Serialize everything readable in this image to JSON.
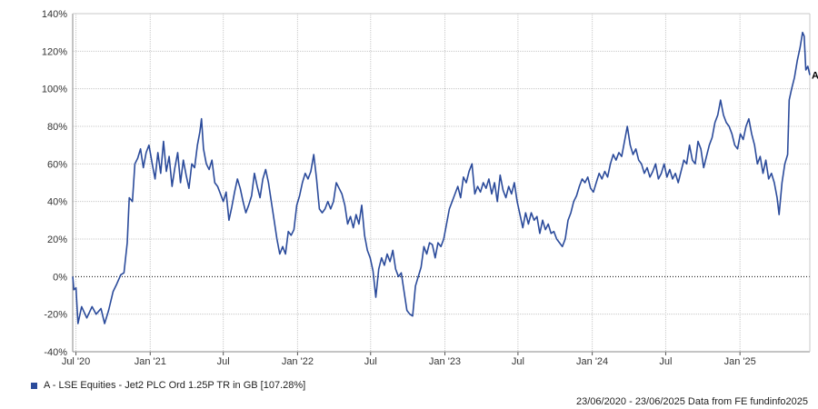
{
  "chart_data": {
    "type": "line",
    "title": "",
    "xlabel": "",
    "ylabel": "",
    "ylim": [
      -40,
      140
    ],
    "y_ticks": [
      -40,
      -20,
      0,
      20,
      40,
      60,
      80,
      100,
      120,
      140
    ],
    "y_tick_labels": [
      "-40%",
      "-20%",
      "0%",
      "20%",
      "40%",
      "60%",
      "80%",
      "100%",
      "120%",
      "140%"
    ],
    "x_range": [
      "2020-06-23",
      "2025-06-23"
    ],
    "x_ticks": [
      {
        "date": "2020-07-01",
        "label": "Jul '20"
      },
      {
        "date": "2021-01-01",
        "label": "Jan '21"
      },
      {
        "date": "2021-07-01",
        "label": "Jul"
      },
      {
        "date": "2022-01-01",
        "label": "Jan '22"
      },
      {
        "date": "2022-07-01",
        "label": "Jul"
      },
      {
        "date": "2023-01-01",
        "label": "Jan '23"
      },
      {
        "date": "2023-07-01",
        "label": "Jul"
      },
      {
        "date": "2024-01-01",
        "label": "Jan '24"
      },
      {
        "date": "2024-07-01",
        "label": "Jul"
      },
      {
        "date": "2025-01-01",
        "label": "Jan '25"
      }
    ],
    "grid": true,
    "zero_line": "dotted",
    "series": [
      {
        "name": "A - LSE Equities - Jet2 PLC Ord 1.25P TR in GB [107.28%]",
        "end_label": "A",
        "color": "#2b4b9b",
        "points": [
          [
            "2020-06-23",
            0
          ],
          [
            "2020-06-26",
            -7
          ],
          [
            "2020-07-01",
            -6
          ],
          [
            "2020-07-06",
            -25
          ],
          [
            "2020-07-15",
            -16
          ],
          [
            "2020-07-28",
            -22
          ],
          [
            "2020-08-10",
            -16
          ],
          [
            "2020-08-20",
            -20
          ],
          [
            "2020-09-01",
            -17
          ],
          [
            "2020-09-10",
            -25
          ],
          [
            "2020-09-20",
            -18
          ],
          [
            "2020-10-01",
            -8
          ],
          [
            "2020-10-10",
            -4
          ],
          [
            "2020-10-20",
            1
          ],
          [
            "2020-10-28",
            2
          ],
          [
            "2020-11-05",
            18
          ],
          [
            "2020-11-10",
            42
          ],
          [
            "2020-11-18",
            40
          ],
          [
            "2020-11-24",
            60
          ],
          [
            "2020-12-01",
            63
          ],
          [
            "2020-12-08",
            68
          ],
          [
            "2020-12-15",
            58
          ],
          [
            "2020-12-22",
            66
          ],
          [
            "2020-12-29",
            70
          ],
          [
            "2021-01-06",
            60
          ],
          [
            "2021-01-13",
            52
          ],
          [
            "2021-01-20",
            66
          ],
          [
            "2021-01-27",
            55
          ],
          [
            "2021-02-03",
            72
          ],
          [
            "2021-02-10",
            56
          ],
          [
            "2021-02-17",
            64
          ],
          [
            "2021-02-24",
            48
          ],
          [
            "2021-03-03",
            58
          ],
          [
            "2021-03-10",
            66
          ],
          [
            "2021-03-17",
            50
          ],
          [
            "2021-03-24",
            62
          ],
          [
            "2021-03-31",
            54
          ],
          [
            "2021-04-07",
            47
          ],
          [
            "2021-04-14",
            60
          ],
          [
            "2021-04-21",
            58
          ],
          [
            "2021-04-28",
            70
          ],
          [
            "2021-05-04",
            77
          ],
          [
            "2021-05-08",
            84
          ],
          [
            "2021-05-13",
            68
          ],
          [
            "2021-05-20",
            60
          ],
          [
            "2021-05-27",
            57
          ],
          [
            "2021-06-03",
            62
          ],
          [
            "2021-06-10",
            50
          ],
          [
            "2021-06-17",
            48
          ],
          [
            "2021-06-24",
            44
          ],
          [
            "2021-07-01",
            40
          ],
          [
            "2021-07-08",
            45
          ],
          [
            "2021-07-15",
            30
          ],
          [
            "2021-07-22",
            37
          ],
          [
            "2021-07-29",
            45
          ],
          [
            "2021-08-05",
            52
          ],
          [
            "2021-08-12",
            47
          ],
          [
            "2021-08-19",
            40
          ],
          [
            "2021-08-26",
            34
          ],
          [
            "2021-09-02",
            38
          ],
          [
            "2021-09-09",
            43
          ],
          [
            "2021-09-16",
            55
          ],
          [
            "2021-09-23",
            48
          ],
          [
            "2021-09-30",
            42
          ],
          [
            "2021-10-07",
            52
          ],
          [
            "2021-10-14",
            57
          ],
          [
            "2021-10-21",
            50
          ],
          [
            "2021-10-28",
            40
          ],
          [
            "2021-11-04",
            30
          ],
          [
            "2021-11-11",
            20
          ],
          [
            "2021-11-18",
            12
          ],
          [
            "2021-11-25",
            16
          ],
          [
            "2021-12-02",
            12
          ],
          [
            "2021-12-09",
            24
          ],
          [
            "2021-12-16",
            22
          ],
          [
            "2021-12-23",
            25
          ],
          [
            "2021-12-30",
            38
          ],
          [
            "2022-01-06",
            43
          ],
          [
            "2022-01-13",
            50
          ],
          [
            "2022-01-20",
            55
          ],
          [
            "2022-01-27",
            52
          ],
          [
            "2022-02-03",
            56
          ],
          [
            "2022-02-10",
            65
          ],
          [
            "2022-02-17",
            52
          ],
          [
            "2022-02-24",
            36
          ],
          [
            "2022-03-03",
            34
          ],
          [
            "2022-03-10",
            36
          ],
          [
            "2022-03-17",
            40
          ],
          [
            "2022-03-24",
            36
          ],
          [
            "2022-03-31",
            40
          ],
          [
            "2022-04-07",
            50
          ],
          [
            "2022-04-14",
            47
          ],
          [
            "2022-04-21",
            44
          ],
          [
            "2022-04-28",
            38
          ],
          [
            "2022-05-05",
            28
          ],
          [
            "2022-05-12",
            32
          ],
          [
            "2022-05-19",
            26
          ],
          [
            "2022-05-26",
            33
          ],
          [
            "2022-06-02",
            28
          ],
          [
            "2022-06-09",
            38
          ],
          [
            "2022-06-16",
            22
          ],
          [
            "2022-06-23",
            14
          ],
          [
            "2022-06-30",
            10
          ],
          [
            "2022-07-07",
            3
          ],
          [
            "2022-07-14",
            -11
          ],
          [
            "2022-07-21",
            4
          ],
          [
            "2022-07-28",
            10
          ],
          [
            "2022-08-04",
            6
          ],
          [
            "2022-08-11",
            12
          ],
          [
            "2022-08-18",
            8
          ],
          [
            "2022-08-25",
            14
          ],
          [
            "2022-09-01",
            4
          ],
          [
            "2022-09-08",
            0
          ],
          [
            "2022-09-15",
            2
          ],
          [
            "2022-09-22",
            -8
          ],
          [
            "2022-09-29",
            -18
          ],
          [
            "2022-10-06",
            -20
          ],
          [
            "2022-10-13",
            -21
          ],
          [
            "2022-10-20",
            -5
          ],
          [
            "2022-10-27",
            0
          ],
          [
            "2022-11-03",
            5
          ],
          [
            "2022-11-10",
            16
          ],
          [
            "2022-11-17",
            12
          ],
          [
            "2022-11-24",
            18
          ],
          [
            "2022-12-01",
            17
          ],
          [
            "2022-12-08",
            10
          ],
          [
            "2022-12-15",
            18
          ],
          [
            "2022-12-22",
            16
          ],
          [
            "2022-12-29",
            20
          ],
          [
            "2023-01-05",
            28
          ],
          [
            "2023-01-12",
            36
          ],
          [
            "2023-01-19",
            40
          ],
          [
            "2023-01-26",
            44
          ],
          [
            "2023-02-02",
            48
          ],
          [
            "2023-02-09",
            42
          ],
          [
            "2023-02-16",
            53
          ],
          [
            "2023-02-23",
            50
          ],
          [
            "2023-03-02",
            56
          ],
          [
            "2023-03-09",
            60
          ],
          [
            "2023-03-16",
            44
          ],
          [
            "2023-03-23",
            48
          ],
          [
            "2023-03-30",
            45
          ],
          [
            "2023-04-06",
            50
          ],
          [
            "2023-04-13",
            47
          ],
          [
            "2023-04-20",
            52
          ],
          [
            "2023-04-27",
            44
          ],
          [
            "2023-05-04",
            50
          ],
          [
            "2023-05-11",
            40
          ],
          [
            "2023-05-18",
            54
          ],
          [
            "2023-05-25",
            46
          ],
          [
            "2023-06-01",
            42
          ],
          [
            "2023-06-08",
            48
          ],
          [
            "2023-06-15",
            44
          ],
          [
            "2023-06-22",
            50
          ],
          [
            "2023-06-29",
            40
          ],
          [
            "2023-07-06",
            33
          ],
          [
            "2023-07-13",
            26
          ],
          [
            "2023-07-20",
            34
          ],
          [
            "2023-07-27",
            28
          ],
          [
            "2023-08-03",
            34
          ],
          [
            "2023-08-10",
            30
          ],
          [
            "2023-08-17",
            32
          ],
          [
            "2023-08-24",
            23
          ],
          [
            "2023-08-31",
            30
          ],
          [
            "2023-09-07",
            25
          ],
          [
            "2023-09-14",
            28
          ],
          [
            "2023-09-21",
            23
          ],
          [
            "2023-09-28",
            24
          ],
          [
            "2023-10-05",
            20
          ],
          [
            "2023-10-12",
            18
          ],
          [
            "2023-10-19",
            16
          ],
          [
            "2023-10-26",
            20
          ],
          [
            "2023-11-02",
            30
          ],
          [
            "2023-11-09",
            34
          ],
          [
            "2023-11-16",
            40
          ],
          [
            "2023-11-23",
            43
          ],
          [
            "2023-11-30",
            48
          ],
          [
            "2023-12-07",
            52
          ],
          [
            "2023-12-14",
            50
          ],
          [
            "2023-12-21",
            53
          ],
          [
            "2023-12-28",
            47
          ],
          [
            "2024-01-04",
            45
          ],
          [
            "2024-01-11",
            50
          ],
          [
            "2024-01-18",
            55
          ],
          [
            "2024-01-25",
            52
          ],
          [
            "2024-02-01",
            56
          ],
          [
            "2024-02-08",
            53
          ],
          [
            "2024-02-15",
            60
          ],
          [
            "2024-02-22",
            65
          ],
          [
            "2024-02-29",
            62
          ],
          [
            "2024-03-07",
            66
          ],
          [
            "2024-03-14",
            64
          ],
          [
            "2024-03-21",
            72
          ],
          [
            "2024-03-28",
            80
          ],
          [
            "2024-04-04",
            70
          ],
          [
            "2024-04-11",
            65
          ],
          [
            "2024-04-18",
            68
          ],
          [
            "2024-04-25",
            62
          ],
          [
            "2024-05-02",
            60
          ],
          [
            "2024-05-09",
            55
          ],
          [
            "2024-05-16",
            58
          ],
          [
            "2024-05-23",
            53
          ],
          [
            "2024-05-30",
            56
          ],
          [
            "2024-06-06",
            60
          ],
          [
            "2024-06-13",
            52
          ],
          [
            "2024-06-20",
            55
          ],
          [
            "2024-06-27",
            60
          ],
          [
            "2024-07-04",
            53
          ],
          [
            "2024-07-11",
            57
          ],
          [
            "2024-07-18",
            52
          ],
          [
            "2024-07-25",
            55
          ],
          [
            "2024-08-01",
            50
          ],
          [
            "2024-08-08",
            56
          ],
          [
            "2024-08-15",
            62
          ],
          [
            "2024-08-22",
            60
          ],
          [
            "2024-08-29",
            70
          ],
          [
            "2024-09-05",
            62
          ],
          [
            "2024-09-12",
            60
          ],
          [
            "2024-09-19",
            72
          ],
          [
            "2024-09-26",
            68
          ],
          [
            "2024-10-03",
            58
          ],
          [
            "2024-10-10",
            64
          ],
          [
            "2024-10-17",
            70
          ],
          [
            "2024-10-24",
            74
          ],
          [
            "2024-10-31",
            82
          ],
          [
            "2024-11-07",
            86
          ],
          [
            "2024-11-14",
            94
          ],
          [
            "2024-11-21",
            86
          ],
          [
            "2024-11-28",
            82
          ],
          [
            "2024-12-05",
            80
          ],
          [
            "2024-12-12",
            76
          ],
          [
            "2024-12-19",
            70
          ],
          [
            "2024-12-26",
            68
          ],
          [
            "2025-01-02",
            76
          ],
          [
            "2025-01-09",
            73
          ],
          [
            "2025-01-16",
            80
          ],
          [
            "2025-01-23",
            84
          ],
          [
            "2025-01-30",
            76
          ],
          [
            "2025-02-06",
            70
          ],
          [
            "2025-02-13",
            60
          ],
          [
            "2025-02-20",
            64
          ],
          [
            "2025-02-27",
            55
          ],
          [
            "2025-03-06",
            62
          ],
          [
            "2025-03-13",
            52
          ],
          [
            "2025-03-20",
            55
          ],
          [
            "2025-03-27",
            50
          ],
          [
            "2025-04-03",
            42
          ],
          [
            "2025-04-08",
            33
          ],
          [
            "2025-04-15",
            50
          ],
          [
            "2025-04-22",
            60
          ],
          [
            "2025-04-29",
            65
          ],
          [
            "2025-05-03",
            94
          ],
          [
            "2025-05-09",
            100
          ],
          [
            "2025-05-16",
            106
          ],
          [
            "2025-05-23",
            115
          ],
          [
            "2025-05-30",
            122
          ],
          [
            "2025-06-05",
            130
          ],
          [
            "2025-06-09",
            128
          ],
          [
            "2025-06-13",
            110
          ],
          [
            "2025-06-18",
            112
          ],
          [
            "2025-06-23",
            107.28
          ]
        ]
      }
    ]
  },
  "legend": {
    "label": "A - LSE Equities - Jet2 PLC Ord 1.25P TR in GB [107.28%]",
    "color": "#2b4b9b"
  },
  "footer": {
    "text": "23/06/2020 - 23/06/2025 Data from FE fundinfo2025"
  }
}
